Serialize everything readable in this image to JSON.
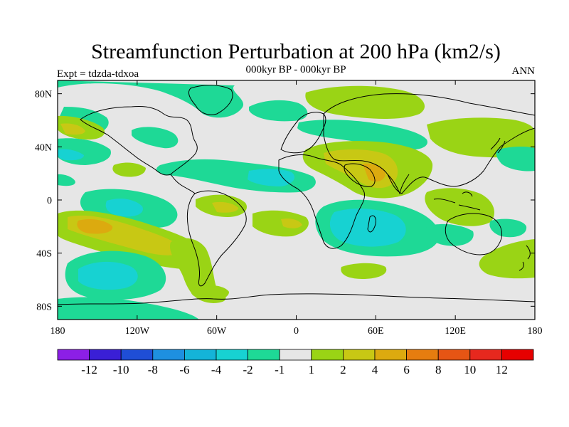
{
  "title": "Streamfunction Perturbation at 200 hPa (km2/s)",
  "left_label": "Expt = tdzda-tdxoa",
  "center_label": "000kyr BP - 000kyr BP",
  "right_label": "ANN",
  "map": {
    "projection": "cylindrical-equidistant",
    "lon_range": [
      -180,
      180
    ],
    "lat_range": [
      -90,
      90
    ],
    "background_color": "#e6e6e6",
    "x_ticks": [
      {
        "lon": -180,
        "label": "180"
      },
      {
        "lon": -120,
        "label": "120W"
      },
      {
        "lon": -60,
        "label": "60W"
      },
      {
        "lon": 0,
        "label": "0"
      },
      {
        "lon": 60,
        "label": "60E"
      },
      {
        "lon": 120,
        "label": "120E"
      },
      {
        "lon": 180,
        "label": "180"
      }
    ],
    "y_ticks": [
      {
        "lat": 80,
        "label": "80N"
      },
      {
        "lat": 40,
        "label": "40N"
      },
      {
        "lat": 0,
        "label": "0"
      },
      {
        "lat": -40,
        "label": "40S"
      },
      {
        "lat": -80,
        "label": "80S"
      }
    ]
  },
  "colorbar": {
    "colors": [
      "#8c1fe6",
      "#3a1fd6",
      "#1f4ed6",
      "#1e90e0",
      "#14b4d8",
      "#17d2d2",
      "#1ed996",
      "#e6e6e6",
      "#9ad415",
      "#c8c814",
      "#dcaa0f",
      "#e67d0f",
      "#e65514",
      "#e6281e",
      "#e60000"
    ],
    "labels": [
      "-12",
      "-10",
      "-8",
      "-6",
      "-4",
      "-2",
      "-1",
      "1",
      "2",
      "4",
      "6",
      "8",
      "10",
      "12"
    ]
  },
  "chart_data": {
    "type": "heatmap",
    "variable": "streamfunction perturbation",
    "units": "km2/s",
    "level": "200 hPa",
    "levels": [
      -12,
      -10,
      -8,
      -6,
      -4,
      -2,
      -1,
      1,
      2,
      4,
      6,
      8,
      10,
      12
    ],
    "features": [
      {
        "kind": "positive",
        "lon": 48,
        "lat": 28,
        "rx": 34,
        "ry": 14,
        "peak": 4
      },
      {
        "kind": "positive",
        "lon": -157,
        "lat": -20,
        "rx": 28,
        "ry": 10,
        "peak": 4
      },
      {
        "kind": "negative",
        "lon": -154,
        "lat": -55,
        "rx": 22,
        "ry": 10,
        "peak": -4
      },
      {
        "kind": "negative",
        "lon": -130,
        "lat": -5,
        "rx": 18,
        "ry": 7,
        "peak": -4
      },
      {
        "kind": "negative",
        "lon": 30,
        "lat": -20,
        "rx": 22,
        "ry": 12,
        "peak": -4
      },
      {
        "kind": "negative",
        "lon": -25,
        "lat": 17,
        "rx": 18,
        "ry": 6,
        "peak": -4
      },
      {
        "kind": "positive",
        "lon": -55,
        "lat": -5,
        "rx": 18,
        "ry": 7,
        "peak": 4
      },
      {
        "kind": "positive",
        "lon": 125,
        "lat": 45,
        "rx": 26,
        "ry": 10,
        "peak": 2
      },
      {
        "kind": "positive",
        "lon": -115,
        "lat": -80,
        "rx": 14,
        "ry": 6,
        "peak": 2
      }
    ]
  }
}
